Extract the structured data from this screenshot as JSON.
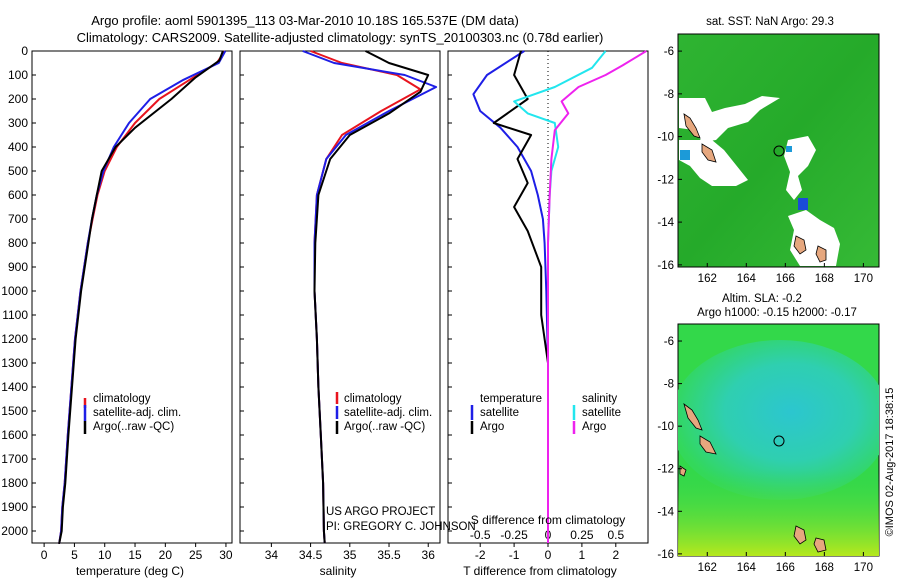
{
  "header": {
    "line1": "Argo profile: aoml 5901395_113 03-Mar-2010 10.18S 165.537E (DM data)",
    "line2": "Climatology: CARS2009. Satellite-adjusted climatology: synTS_20100303.nc (0.78d earlier)"
  },
  "colors": {
    "climatology": "#e8141e",
    "satellite": "#1e1ee6",
    "argo": "#000000",
    "sal_satellite": "#22e6ee",
    "sal_argo": "#ee22ee"
  },
  "legend": {
    "climatology": "climatology",
    "satellite_adj": "satellite-adj. clim.",
    "argo": "Argo(..raw -QC)",
    "diff_temperature": "temperature",
    "diff_salinity": "salinity",
    "diff_satellite": "satellite",
    "diff_argo": "Argo"
  },
  "credits": {
    "project": "US ARGO PROJECT",
    "pi": "PI: GREGORY C. JOHNSON"
  },
  "maps": {
    "sst_title": "sat. SST: NaN Argo: 29.3",
    "sla_title1": "Altim. SLA: -0.2",
    "sla_title2": "Argo h1000: -0.15 h2000: -0.17",
    "imos": "©IMOS 02-Aug-2017 18:38:15",
    "lon_ticks": [
      "162",
      "164",
      "166",
      "168",
      "170"
    ],
    "lat_ticks": [
      "-6",
      "-8",
      "-10",
      "-12",
      "-14",
      "-16"
    ]
  },
  "chart_data": [
    {
      "type": "line",
      "title": "temperature",
      "xlabel": "temperature (deg C)",
      "ylabel": "",
      "xlim": [
        -2,
        31
      ],
      "ylim": [
        2050,
        0
      ],
      "xticks": [
        0,
        5,
        10,
        15,
        20,
        25,
        30
      ],
      "yticks": [
        0,
        100,
        200,
        300,
        400,
        500,
        600,
        700,
        800,
        900,
        1000,
        1100,
        1200,
        1300,
        1400,
        1500,
        1600,
        1700,
        1800,
        1900,
        2000
      ],
      "series": [
        {
          "name": "climatology",
          "x": [
            29.8,
            28.5,
            24,
            19,
            15,
            12,
            10,
            8.8,
            8,
            7.2,
            6,
            5.1,
            4.5,
            3.9,
            3.4,
            3.0,
            2.8,
            2.5,
            2.35
          ],
          "y": [
            0,
            50,
            120,
            200,
            300,
            400,
            500,
            600,
            700,
            800,
            1000,
            1200,
            1400,
            1600,
            1800,
            1900,
            2000,
            2050,
            2050
          ]
        },
        {
          "name": "satellite-adj. clim.",
          "x": [
            29.9,
            28.8,
            23,
            17.5,
            14,
            11.5,
            9.8,
            8.7,
            7.9,
            7.2,
            6,
            5.1,
            4.5,
            3.9,
            3.4,
            3.0,
            2.8,
            2.5,
            2.35
          ],
          "y": [
            0,
            50,
            120,
            200,
            300,
            400,
            500,
            600,
            700,
            800,
            1000,
            1200,
            1400,
            1600,
            1800,
            1900,
            2000,
            2050,
            2050
          ]
        },
        {
          "name": "Argo(..raw -QC)",
          "x": [
            29.5,
            28.9,
            25,
            21,
            15,
            11.8,
            9.5,
            8.7,
            7.9,
            7.3,
            6.1,
            5.2,
            4.6,
            4.0,
            3.5,
            3.1,
            2.9,
            2.5,
            2.35
          ],
          "y": [
            0,
            40,
            110,
            200,
            320,
            400,
            500,
            600,
            700,
            800,
            1000,
            1200,
            1400,
            1600,
            1800,
            1900,
            2000,
            2050,
            2050
          ]
        }
      ]
    },
    {
      "type": "line",
      "title": "salinity",
      "xlabel": "salinity",
      "ylabel": "",
      "xlim": [
        33.6,
        36.15
      ],
      "ylim": [
        2050,
        0
      ],
      "xticks": [
        34,
        34.5,
        35,
        35.5,
        36
      ],
      "series": [
        {
          "name": "climatology",
          "x": [
            34.5,
            34.9,
            35.6,
            35.9,
            35.4,
            34.9,
            34.7,
            34.58,
            34.55,
            34.55,
            34.58,
            34.6,
            34.63,
            34.66,
            34.67,
            34.68
          ],
          "y": [
            0,
            50,
            100,
            160,
            250,
            350,
            450,
            600,
            800,
            1000,
            1200,
            1400,
            1600,
            1800,
            2000,
            2050
          ]
        },
        {
          "name": "satellite-adj. clim.",
          "x": [
            34.4,
            34.8,
            35.7,
            36.1,
            35.5,
            34.95,
            34.7,
            34.58,
            34.55,
            34.55,
            34.58,
            34.6,
            34.63,
            34.66,
            34.67,
            34.68
          ],
          "y": [
            0,
            50,
            100,
            150,
            250,
            350,
            450,
            600,
            800,
            1000,
            1200,
            1400,
            1600,
            1800,
            2000,
            2050
          ]
        },
        {
          "name": "Argo(..raw -QC)",
          "x": [
            35.2,
            35.5,
            36.0,
            35.9,
            35.5,
            35.0,
            34.75,
            34.6,
            34.56,
            34.55,
            34.58,
            34.6,
            34.63,
            34.66,
            34.67,
            34.68
          ],
          "y": [
            0,
            50,
            100,
            170,
            260,
            350,
            450,
            600,
            800,
            1000,
            1200,
            1400,
            1600,
            1800,
            2000,
            2050
          ]
        }
      ]
    },
    {
      "type": "line",
      "title": "difference from climatology",
      "xlabel": "T difference from climatology",
      "xlabel_top": "S difference from climatology",
      "xlim": [
        -2.95,
        2.95
      ],
      "ylim": [
        2050,
        0
      ],
      "xticks": [
        -2,
        -1,
        0,
        1,
        2
      ],
      "xticks_top": [
        "-0.5",
        "-0.25",
        "0",
        "0.25",
        "0.5"
      ],
      "series": [
        {
          "name": "temperature satellite",
          "x": [
            -0.7,
            -1.8,
            -2.2,
            -2.0,
            -1.4,
            -0.9,
            -0.5,
            -0.3,
            -0.15,
            -0.1,
            -0.05,
            0,
            0,
            0
          ],
          "y": [
            0,
            100,
            180,
            250,
            320,
            400,
            500,
            600,
            700,
            800,
            1000,
            1300,
            1700,
            2050
          ]
        },
        {
          "name": "temperature Argo",
          "x": [
            -0.8,
            -1.0,
            -0.6,
            -1.6,
            -0.5,
            -0.9,
            -0.6,
            -1.0,
            -0.6,
            -0.2,
            -0.2,
            0,
            0,
            0
          ],
          "y": [
            0,
            100,
            200,
            300,
            350,
            450,
            550,
            650,
            750,
            900,
            1100,
            1300,
            1700,
            2050
          ]
        },
        {
          "name": "salinity satellite",
          "x": [
            1.7,
            1.3,
            0.2,
            -1.0,
            -0.6,
            0.2,
            0.3,
            0.1,
            0.05,
            0,
            0,
            0
          ],
          "y": [
            0,
            70,
            150,
            210,
            260,
            300,
            400,
            500,
            600,
            800,
            1300,
            2050
          ]
        },
        {
          "name": "salinity Argo",
          "x": [
            2.9,
            2.2,
            1.7,
            0.9,
            0.4,
            0.6,
            0.2,
            0.1,
            0.05,
            0,
            0,
            0
          ],
          "y": [
            0,
            60,
            100,
            150,
            210,
            260,
            330,
            450,
            600,
            800,
            1300,
            2050
          ]
        }
      ]
    }
  ]
}
